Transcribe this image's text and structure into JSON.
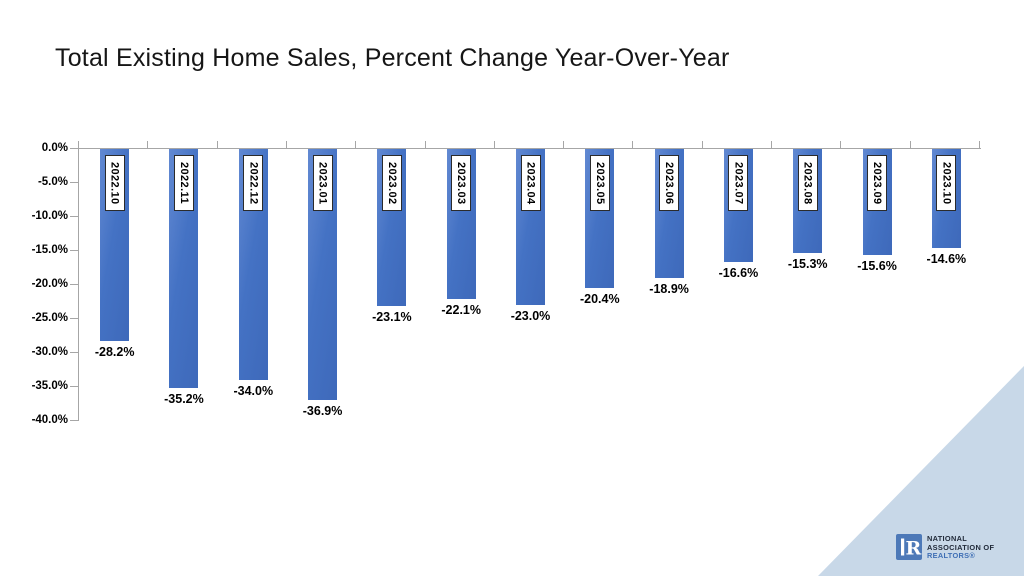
{
  "header": {
    "title": "Total Existing Home Sales, Percent Change Year-Over-Year"
  },
  "chart_data": {
    "type": "bar",
    "title": "Total Existing Home Sales, Percent Change Year-Over-Year",
    "categories": [
      "2022.10",
      "2022.11",
      "2022.12",
      "2023.01",
      "2023.02",
      "2023.03",
      "2023.04",
      "2023.05",
      "2023.06",
      "2023.07",
      "2023.08",
      "2023.09",
      "2023.10"
    ],
    "values": [
      -28.2,
      -35.2,
      -34.0,
      -36.9,
      -23.1,
      -22.1,
      -23.0,
      -20.4,
      -18.9,
      -16.6,
      -15.3,
      -15.6,
      -14.6
    ],
    "value_labels": [
      "-28.2%",
      "-35.2%",
      "-34.0%",
      "-36.9%",
      "-23.1%",
      "-22.1%",
      "-23.0%",
      "-20.4%",
      "-18.9%",
      "-16.6%",
      "-15.3%",
      "-15.6%",
      "-14.6%"
    ],
    "xlabel": "",
    "ylabel": "",
    "ylim": [
      -40,
      0
    ],
    "yticks": [
      0,
      -5,
      -10,
      -15,
      -20,
      -25,
      -30,
      -35,
      -40
    ],
    "ytick_labels": [
      "0.0%",
      "-5.0%",
      "-10.0%",
      "-15.0%",
      "-20.0%",
      "-25.0%",
      "-30.0%",
      "-35.0%",
      "-40.0%"
    ],
    "grid": false,
    "legend": "none",
    "bar_color": "#4472c4",
    "bar_color_light": "#6289d2",
    "bar_color_dark": "#3e69ba",
    "axis_color": "#a6a6a6",
    "category_label_style": "rotated-90-cw-in-white-box"
  },
  "branding": {
    "logo_letter": "R",
    "logo_square_color": "#4d79b8",
    "name_line1": "NATIONAL",
    "name_line2": "ASSOCIATION OF",
    "name_line3": "REALTORS®",
    "navy_text_color": "#222b3a",
    "blue_text_color": "#3f6fb5",
    "triangle_color": "#c8d8e8"
  }
}
